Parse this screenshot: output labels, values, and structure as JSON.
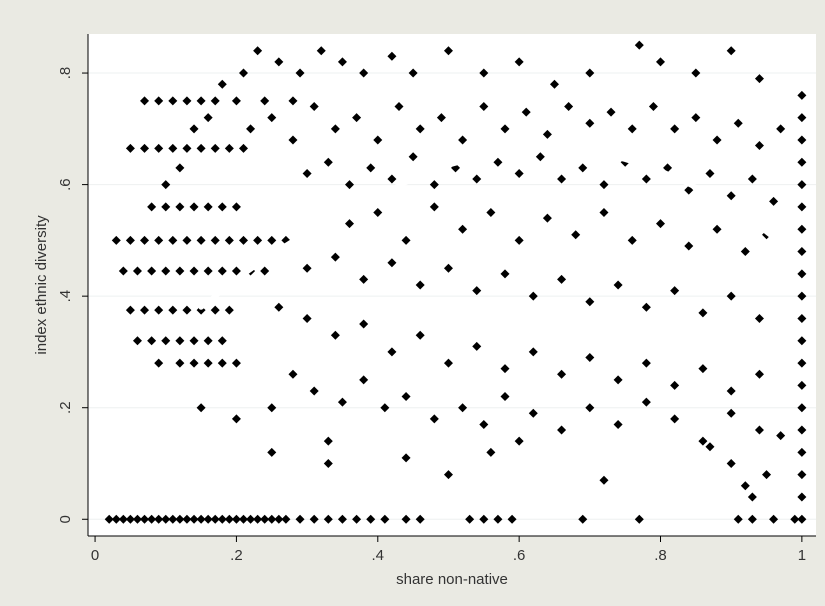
{
  "chart_data": {
    "type": "scatter",
    "title": "",
    "xlabel": "share non-native",
    "ylabel": "index ethnic diversity",
    "xlim": [
      -0.01,
      1.02
    ],
    "ylim": [
      -0.03,
      0.87
    ],
    "x_ticks": [
      0,
      0.2,
      0.4,
      0.6,
      0.8,
      1
    ],
    "x_tick_labels": [
      "0",
      ".2",
      ".4",
      ".6",
      ".8",
      "1"
    ],
    "y_ticks": [
      0,
      0.2,
      0.4,
      0.6,
      0.8
    ],
    "y_tick_labels": [
      "0",
      ".2",
      ".4",
      ".6",
      ".8"
    ],
    "grid": "horizontal",
    "legend": "none",
    "marker": "diamond",
    "colors": {
      "background": "#eaeae3",
      "plot_area": "#ffffff",
      "markers": "#000000",
      "fit_line": "#ffffff",
      "axis": "#000000"
    },
    "series": [
      {
        "type": "scatter",
        "points": [
          [
            0.02,
            0
          ],
          [
            0.03,
            0
          ],
          [
            0.04,
            0
          ],
          [
            0.05,
            0
          ],
          [
            0.06,
            0
          ],
          [
            0.07,
            0
          ],
          [
            0.08,
            0
          ],
          [
            0.09,
            0
          ],
          [
            0.1,
            0
          ],
          [
            0.11,
            0
          ],
          [
            0.12,
            0
          ],
          [
            0.13,
            0
          ],
          [
            0.14,
            0
          ],
          [
            0.15,
            0
          ],
          [
            0.16,
            0
          ],
          [
            0.17,
            0
          ],
          [
            0.18,
            0
          ],
          [
            0.19,
            0
          ],
          [
            0.2,
            0
          ],
          [
            0.21,
            0
          ],
          [
            0.22,
            0
          ],
          [
            0.23,
            0
          ],
          [
            0.24,
            0
          ],
          [
            0.25,
            0
          ],
          [
            0.26,
            0
          ],
          [
            0.27,
            0
          ],
          [
            0.29,
            0
          ],
          [
            0.31,
            0
          ],
          [
            0.33,
            0
          ],
          [
            0.35,
            0
          ],
          [
            0.37,
            0
          ],
          [
            0.39,
            0
          ],
          [
            0.41,
            0
          ],
          [
            0.44,
            0
          ],
          [
            0.46,
            0
          ],
          [
            0.53,
            0
          ],
          [
            0.55,
            0
          ],
          [
            0.57,
            0
          ],
          [
            0.59,
            0
          ],
          [
            0.69,
            0
          ],
          [
            0.77,
            0
          ],
          [
            0.91,
            0
          ],
          [
            0.93,
            0
          ],
          [
            0.96,
            0
          ],
          [
            0.99,
            0
          ],
          [
            1.0,
            0
          ],
          [
            0.03,
            0.5
          ],
          [
            0.05,
            0.5
          ],
          [
            0.07,
            0.5
          ],
          [
            0.09,
            0.5
          ],
          [
            0.11,
            0.5
          ],
          [
            0.13,
            0.5
          ],
          [
            0.15,
            0.5
          ],
          [
            0.17,
            0.5
          ],
          [
            0.19,
            0.5
          ],
          [
            0.21,
            0.5
          ],
          [
            0.23,
            0.5
          ],
          [
            0.25,
            0.5
          ],
          [
            0.27,
            0.5
          ],
          [
            0.04,
            0.445
          ],
          [
            0.06,
            0.445
          ],
          [
            0.08,
            0.445
          ],
          [
            0.1,
            0.445
          ],
          [
            0.12,
            0.445
          ],
          [
            0.14,
            0.445
          ],
          [
            0.16,
            0.445
          ],
          [
            0.18,
            0.445
          ],
          [
            0.2,
            0.445
          ],
          [
            0.22,
            0.445
          ],
          [
            0.24,
            0.445
          ],
          [
            0.05,
            0.375
          ],
          [
            0.07,
            0.375
          ],
          [
            0.09,
            0.375
          ],
          [
            0.11,
            0.375
          ],
          [
            0.13,
            0.375
          ],
          [
            0.15,
            0.375
          ],
          [
            0.17,
            0.375
          ],
          [
            0.19,
            0.375
          ],
          [
            0.06,
            0.32
          ],
          [
            0.08,
            0.32
          ],
          [
            0.1,
            0.32
          ],
          [
            0.12,
            0.32
          ],
          [
            0.14,
            0.32
          ],
          [
            0.16,
            0.32
          ],
          [
            0.18,
            0.32
          ],
          [
            0.07,
            0.75
          ],
          [
            0.09,
            0.75
          ],
          [
            0.11,
            0.75
          ],
          [
            0.13,
            0.75
          ],
          [
            0.15,
            0.75
          ],
          [
            0.17,
            0.75
          ],
          [
            0.2,
            0.75
          ],
          [
            0.24,
            0.75
          ],
          [
            0.28,
            0.75
          ],
          [
            0.05,
            0.665
          ],
          [
            0.07,
            0.665
          ],
          [
            0.09,
            0.665
          ],
          [
            0.11,
            0.665
          ],
          [
            0.13,
            0.665
          ],
          [
            0.15,
            0.665
          ],
          [
            0.17,
            0.665
          ],
          [
            0.19,
            0.665
          ],
          [
            0.21,
            0.665
          ],
          [
            0.08,
            0.56
          ],
          [
            0.1,
            0.56
          ],
          [
            0.12,
            0.56
          ],
          [
            0.14,
            0.56
          ],
          [
            0.16,
            0.56
          ],
          [
            0.18,
            0.56
          ],
          [
            0.2,
            0.56
          ],
          [
            0.09,
            0.28
          ],
          [
            0.12,
            0.28
          ],
          [
            0.14,
            0.28
          ],
          [
            0.16,
            0.28
          ],
          [
            0.18,
            0.28
          ],
          [
            0.2,
            0.28
          ],
          [
            0.1,
            0.6
          ],
          [
            0.12,
            0.63
          ],
          [
            0.14,
            0.7
          ],
          [
            0.16,
            0.72
          ],
          [
            0.18,
            0.78
          ],
          [
            0.21,
            0.8
          ],
          [
            0.23,
            0.84
          ],
          [
            0.26,
            0.82
          ],
          [
            0.29,
            0.8
          ],
          [
            0.32,
            0.84
          ],
          [
            0.35,
            0.82
          ],
          [
            0.38,
            0.8
          ],
          [
            0.42,
            0.83
          ],
          [
            0.45,
            0.8
          ],
          [
            0.5,
            0.84
          ],
          [
            0.55,
            0.8
          ],
          [
            0.6,
            0.82
          ],
          [
            0.65,
            0.78
          ],
          [
            0.7,
            0.8
          ],
          [
            0.77,
            0.85
          ],
          [
            0.8,
            0.82
          ],
          [
            0.85,
            0.8
          ],
          [
            0.9,
            0.84
          ],
          [
            0.94,
            0.79
          ],
          [
            0.22,
            0.7
          ],
          [
            0.25,
            0.72
          ],
          [
            0.28,
            0.68
          ],
          [
            0.31,
            0.74
          ],
          [
            0.34,
            0.7
          ],
          [
            0.37,
            0.72
          ],
          [
            0.4,
            0.68
          ],
          [
            0.43,
            0.74
          ],
          [
            0.46,
            0.7
          ],
          [
            0.49,
            0.72
          ],
          [
            0.52,
            0.68
          ],
          [
            0.55,
            0.74
          ],
          [
            0.58,
            0.7
          ],
          [
            0.61,
            0.73
          ],
          [
            0.64,
            0.69
          ],
          [
            0.67,
            0.74
          ],
          [
            0.7,
            0.71
          ],
          [
            0.73,
            0.73
          ],
          [
            0.76,
            0.7
          ],
          [
            0.79,
            0.74
          ],
          [
            0.82,
            0.7
          ],
          [
            0.85,
            0.72
          ],
          [
            0.88,
            0.68
          ],
          [
            0.91,
            0.71
          ],
          [
            0.94,
            0.67
          ],
          [
            0.97,
            0.7
          ],
          [
            0.3,
            0.62
          ],
          [
            0.33,
            0.64
          ],
          [
            0.36,
            0.6
          ],
          [
            0.39,
            0.63
          ],
          [
            0.42,
            0.61
          ],
          [
            0.45,
            0.65
          ],
          [
            0.48,
            0.6
          ],
          [
            0.51,
            0.63
          ],
          [
            0.54,
            0.61
          ],
          [
            0.57,
            0.64
          ],
          [
            0.6,
            0.62
          ],
          [
            0.63,
            0.65
          ],
          [
            0.66,
            0.61
          ],
          [
            0.69,
            0.63
          ],
          [
            0.72,
            0.6
          ],
          [
            0.75,
            0.64
          ],
          [
            0.78,
            0.61
          ],
          [
            0.81,
            0.63
          ],
          [
            0.84,
            0.59
          ],
          [
            0.87,
            0.62
          ],
          [
            0.9,
            0.58
          ],
          [
            0.93,
            0.61
          ],
          [
            0.96,
            0.57
          ],
          [
            0.36,
            0.53
          ],
          [
            0.4,
            0.55
          ],
          [
            0.44,
            0.5
          ],
          [
            0.48,
            0.56
          ],
          [
            0.52,
            0.52
          ],
          [
            0.56,
            0.55
          ],
          [
            0.6,
            0.5
          ],
          [
            0.64,
            0.54
          ],
          [
            0.68,
            0.51
          ],
          [
            0.72,
            0.55
          ],
          [
            0.76,
            0.5
          ],
          [
            0.8,
            0.53
          ],
          [
            0.84,
            0.49
          ],
          [
            0.88,
            0.52
          ],
          [
            0.92,
            0.48
          ],
          [
            0.95,
            0.51
          ],
          [
            0.3,
            0.45
          ],
          [
            0.34,
            0.47
          ],
          [
            0.38,
            0.43
          ],
          [
            0.42,
            0.46
          ],
          [
            0.46,
            0.42
          ],
          [
            0.5,
            0.45
          ],
          [
            0.54,
            0.41
          ],
          [
            0.58,
            0.44
          ],
          [
            0.62,
            0.4
          ],
          [
            0.66,
            0.43
          ],
          [
            0.7,
            0.39
          ],
          [
            0.74,
            0.42
          ],
          [
            0.78,
            0.38
          ],
          [
            0.82,
            0.41
          ],
          [
            0.86,
            0.37
          ],
          [
            0.9,
            0.4
          ],
          [
            0.94,
            0.36
          ],
          [
            0.26,
            0.38
          ],
          [
            0.3,
            0.36
          ],
          [
            0.34,
            0.33
          ],
          [
            0.38,
            0.35
          ],
          [
            0.42,
            0.3
          ],
          [
            0.46,
            0.33
          ],
          [
            0.5,
            0.28
          ],
          [
            0.54,
            0.31
          ],
          [
            0.58,
            0.27
          ],
          [
            0.62,
            0.3
          ],
          [
            0.66,
            0.26
          ],
          [
            0.7,
            0.29
          ],
          [
            0.74,
            0.25
          ],
          [
            0.78,
            0.28
          ],
          [
            0.82,
            0.24
          ],
          [
            0.86,
            0.27
          ],
          [
            0.9,
            0.23
          ],
          [
            0.94,
            0.26
          ],
          [
            0.2,
            0.18
          ],
          [
            0.25,
            0.2
          ],
          [
            0.28,
            0.26
          ],
          [
            0.31,
            0.23
          ],
          [
            0.35,
            0.21
          ],
          [
            0.38,
            0.25
          ],
          [
            0.41,
            0.2
          ],
          [
            0.44,
            0.22
          ],
          [
            0.48,
            0.18
          ],
          [
            0.52,
            0.2
          ],
          [
            0.55,
            0.17
          ],
          [
            0.58,
            0.22
          ],
          [
            0.62,
            0.19
          ],
          [
            0.66,
            0.16
          ],
          [
            0.7,
            0.2
          ],
          [
            0.74,
            0.17
          ],
          [
            0.78,
            0.21
          ],
          [
            0.82,
            0.18
          ],
          [
            0.86,
            0.14
          ],
          [
            0.9,
            0.19
          ],
          [
            0.94,
            0.16
          ],
          [
            0.15,
            0.2
          ],
          [
            0.25,
            0.12
          ],
          [
            0.33,
            0.1
          ],
          [
            0.33,
            0.14
          ],
          [
            0.44,
            0.11
          ],
          [
            0.5,
            0.08
          ],
          [
            0.56,
            0.12
          ],
          [
            0.6,
            0.14
          ],
          [
            0.72,
            0.07
          ],
          [
            0.87,
            0.13
          ],
          [
            0.9,
            0.1
          ],
          [
            0.92,
            0.06
          ],
          [
            0.93,
            0.04
          ],
          [
            0.95,
            0.08
          ],
          [
            0.97,
            0.15
          ],
          [
            1.0,
            0.76
          ],
          [
            1.0,
            0.72
          ],
          [
            1.0,
            0.68
          ],
          [
            1.0,
            0.64
          ],
          [
            1.0,
            0.6
          ],
          [
            1.0,
            0.56
          ],
          [
            1.0,
            0.52
          ],
          [
            1.0,
            0.48
          ],
          [
            1.0,
            0.44
          ],
          [
            1.0,
            0.4
          ],
          [
            1.0,
            0.36
          ],
          [
            1.0,
            0.32
          ],
          [
            1.0,
            0.28
          ],
          [
            1.0,
            0.24
          ],
          [
            1.0,
            0.2
          ],
          [
            1.0,
            0.16
          ],
          [
            1.0,
            0.12
          ],
          [
            1.0,
            0.08
          ],
          [
            1.0,
            0.04
          ]
        ]
      },
      {
        "type": "line",
        "x": [
          0.15,
          0.2,
          0.25,
          0.3,
          0.35,
          0.4,
          0.45,
          0.5,
          0.55,
          0.6,
          0.65,
          0.7,
          0.75,
          0.8,
          0.85,
          0.9,
          0.95,
          1.0
        ],
        "y": [
          0.38,
          0.43,
          0.475,
          0.515,
          0.55,
          0.58,
          0.61,
          0.635,
          0.652,
          0.662,
          0.665,
          0.66,
          0.645,
          0.625,
          0.595,
          0.56,
          0.515,
          0.465
        ]
      }
    ]
  }
}
